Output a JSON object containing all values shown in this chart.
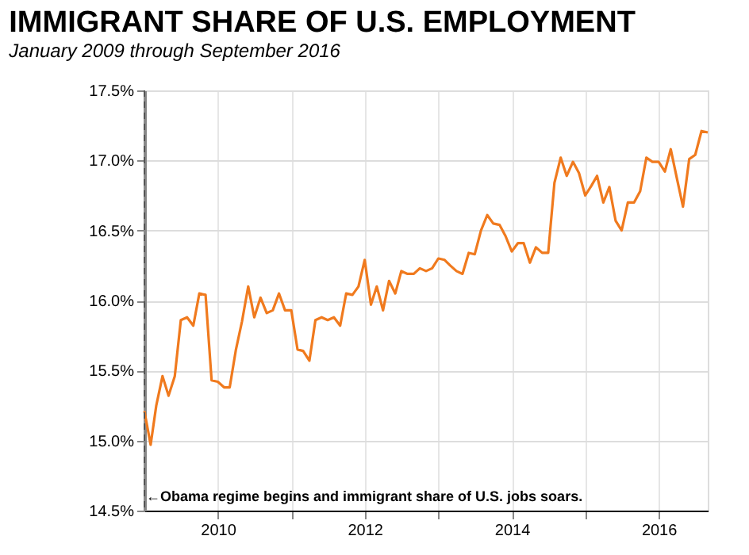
{
  "chart_data": {
    "type": "line",
    "title": "IMMIGRANT SHARE OF U.S. EMPLOYMENT",
    "subtitle": "January 2009 through September 2016",
    "x": [
      "2009-01",
      "2009-02",
      "2009-03",
      "2009-04",
      "2009-05",
      "2009-06",
      "2009-07",
      "2009-08",
      "2009-09",
      "2009-10",
      "2009-11",
      "2009-12",
      "2010-01",
      "2010-02",
      "2010-03",
      "2010-04",
      "2010-05",
      "2010-06",
      "2010-07",
      "2010-08",
      "2010-09",
      "2010-10",
      "2010-11",
      "2010-12",
      "2011-01",
      "2011-02",
      "2011-03",
      "2011-04",
      "2011-05",
      "2011-06",
      "2011-07",
      "2011-08",
      "2011-09",
      "2011-10",
      "2011-11",
      "2011-12",
      "2012-01",
      "2012-02",
      "2012-03",
      "2012-04",
      "2012-05",
      "2012-06",
      "2012-07",
      "2012-08",
      "2012-09",
      "2012-10",
      "2012-11",
      "2012-12",
      "2013-01",
      "2013-02",
      "2013-03",
      "2013-04",
      "2013-05",
      "2013-06",
      "2013-07",
      "2013-08",
      "2013-09",
      "2013-10",
      "2013-11",
      "2013-12",
      "2014-01",
      "2014-02",
      "2014-03",
      "2014-04",
      "2014-05",
      "2014-06",
      "2014-07",
      "2014-08",
      "2014-09",
      "2014-10",
      "2014-11",
      "2014-12",
      "2015-01",
      "2015-02",
      "2015-03",
      "2015-04",
      "2015-05",
      "2015-06",
      "2015-07",
      "2015-08",
      "2015-09",
      "2015-10",
      "2015-11",
      "2015-12",
      "2016-01",
      "2016-02",
      "2016-03",
      "2016-04",
      "2016-05",
      "2016-06",
      "2016-07",
      "2016-08",
      "2016-09"
    ],
    "series": [
      {
        "color": "#f07a1e",
        "values": [
          15.21,
          14.97,
          15.25,
          15.46,
          15.32,
          15.46,
          15.86,
          15.88,
          15.82,
          16.05,
          16.04,
          15.43,
          15.42,
          15.38,
          15.38,
          15.65,
          15.85,
          16.1,
          15.88,
          16.02,
          15.91,
          15.93,
          16.05,
          15.93,
          15.93,
          15.65,
          15.64,
          15.57,
          15.86,
          15.88,
          15.86,
          15.88,
          15.82,
          16.05,
          16.04,
          16.1,
          16.29,
          15.97,
          16.1,
          15.93,
          16.14,
          16.05,
          16.21,
          16.19,
          16.19,
          16.23,
          16.21,
          16.23,
          16.3,
          16.29,
          16.25,
          16.21,
          16.19,
          16.34,
          16.33,
          16.5,
          16.61,
          16.55,
          16.54,
          16.46,
          16.35,
          16.41,
          16.41,
          16.27,
          16.38,
          16.34,
          16.34,
          16.84,
          17.02,
          16.89,
          16.99,
          16.91,
          16.75,
          16.82,
          16.89,
          16.7,
          16.81,
          16.57,
          16.5,
          16.7,
          16.7,
          16.78,
          17.02,
          16.99,
          16.99,
          16.92,
          17.08,
          16.87,
          16.67,
          17.01,
          17.04,
          17.21,
          17.2
        ]
      }
    ],
    "xlim": [
      "2009-01",
      "2016-09"
    ],
    "xticks": [
      {
        "value": "2010",
        "label": "2010"
      },
      {
        "value": "2011",
        "label": null
      },
      {
        "value": "2012",
        "label": "2012"
      },
      {
        "value": "2013",
        "label": null
      },
      {
        "value": "2014",
        "label": "2014"
      },
      {
        "value": "2015",
        "label": null
      },
      {
        "value": "2016",
        "label": "2016"
      }
    ],
    "ylim": [
      14.5,
      17.5
    ],
    "yticks": [
      {
        "value": 14.5,
        "label": "14.5%"
      },
      {
        "value": 15.0,
        "label": "15.0%"
      },
      {
        "value": 15.5,
        "label": "15.5%"
      },
      {
        "value": 16.0,
        "label": "16.0%"
      },
      {
        "value": 16.5,
        "label": "16.5%"
      },
      {
        "value": 17.0,
        "label": "17.0%"
      },
      {
        "value": 17.5,
        "label": "17.5%"
      }
    ],
    "grid": true,
    "marker": "none",
    "line_style": "solid",
    "ref_lines": [
      {
        "axis": "x",
        "value": "2009-01",
        "label": "←Obama regime begins and immigrant share of U.S. jobs soars.",
        "color": "#555555",
        "line_style": "dashed"
      }
    ]
  }
}
